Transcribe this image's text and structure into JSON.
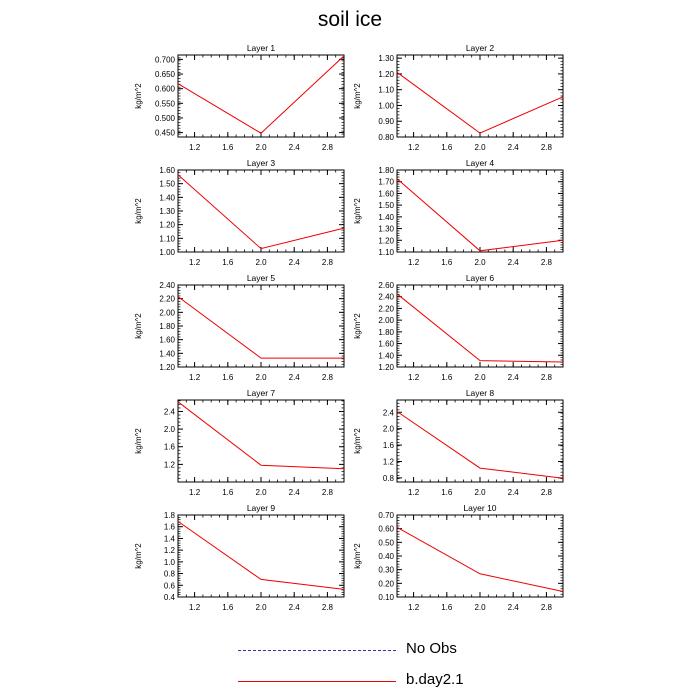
{
  "title": "soil ice",
  "chart_data": [
    {
      "type": "line",
      "title": "Layer 1",
      "ylabel": "kg/m^2",
      "x": [
        1.0,
        2.0,
        3.0
      ],
      "xlim": [
        1.0,
        3.0
      ],
      "ylim": [
        0.435,
        0.715
      ],
      "xticks": [
        "1.2",
        "1.6",
        "2.0",
        "2.4",
        "2.8"
      ],
      "yticks": [
        "0.700",
        "0.650",
        "0.600",
        "0.550",
        "0.500",
        "0.450"
      ],
      "series": [
        {
          "name": "b.day2.1",
          "values": [
            0.617,
            0.448,
            0.712
          ]
        }
      ]
    },
    {
      "type": "line",
      "title": "Layer 2",
      "ylabel": "kg/m^2",
      "x": [
        1.0,
        2.0,
        3.0
      ],
      "xlim": [
        1.0,
        3.0
      ],
      "ylim": [
        0.8,
        1.32
      ],
      "xticks": [
        "1.2",
        "1.6",
        "2.0",
        "2.4",
        "2.8"
      ],
      "yticks": [
        "1.30",
        "1.20",
        "1.10",
        "1.00",
        "0.90",
        "0.80"
      ],
      "series": [
        {
          "name": "b.day2.1",
          "values": [
            1.21,
            0.825,
            1.055
          ]
        }
      ]
    },
    {
      "type": "line",
      "title": "Layer 3",
      "ylabel": "kg/m^2",
      "x": [
        1.0,
        2.0,
        3.0
      ],
      "xlim": [
        1.0,
        3.0
      ],
      "ylim": [
        1.0,
        1.6
      ],
      "xticks": [
        "1.2",
        "1.6",
        "2.0",
        "2.4",
        "2.8"
      ],
      "yticks": [
        "1.60",
        "1.50",
        "1.40",
        "1.30",
        "1.20",
        "1.10",
        "1.00"
      ],
      "series": [
        {
          "name": "b.day2.1",
          "values": [
            1.565,
            1.025,
            1.175
          ]
        }
      ]
    },
    {
      "type": "line",
      "title": "Layer 4",
      "ylabel": "kg/m^2",
      "x": [
        1.0,
        2.0,
        3.0
      ],
      "xlim": [
        1.0,
        3.0
      ],
      "ylim": [
        1.1,
        1.8
      ],
      "xticks": [
        "1.2",
        "1.6",
        "2.0",
        "2.4",
        "2.8"
      ],
      "yticks": [
        "1.80",
        "1.70",
        "1.60",
        "1.50",
        "1.40",
        "1.30",
        "1.20",
        "1.10"
      ],
      "series": [
        {
          "name": "b.day2.1",
          "values": [
            1.725,
            1.11,
            1.2
          ]
        }
      ]
    },
    {
      "type": "line",
      "title": "Layer 5",
      "ylabel": "kg/m^2",
      "x": [
        1.0,
        2.0,
        3.0
      ],
      "xlim": [
        1.0,
        3.0
      ],
      "ylim": [
        1.2,
        2.4
      ],
      "xticks": [
        "1.2",
        "1.6",
        "2.0",
        "2.4",
        "2.8"
      ],
      "yticks": [
        "2.40",
        "2.20",
        "2.00",
        "1.80",
        "1.60",
        "1.40",
        "1.20"
      ],
      "series": [
        {
          "name": "b.day2.1",
          "values": [
            2.23,
            1.33,
            1.33
          ]
        }
      ]
    },
    {
      "type": "line",
      "title": "Layer 6",
      "ylabel": "kg/m^2",
      "x": [
        1.0,
        2.0,
        3.0
      ],
      "xlim": [
        1.0,
        3.0
      ],
      "ylim": [
        1.2,
        2.6
      ],
      "xticks": [
        "1.2",
        "1.6",
        "2.0",
        "2.4",
        "2.8"
      ],
      "yticks": [
        "2.60",
        "2.40",
        "2.20",
        "2.00",
        "1.80",
        "1.60",
        "1.40",
        "1.20"
      ],
      "series": [
        {
          "name": "b.day2.1",
          "values": [
            2.45,
            1.31,
            1.285
          ]
        }
      ]
    },
    {
      "type": "line",
      "title": "Layer 7",
      "ylabel": "kg/m^2",
      "x": [
        1.0,
        2.0,
        3.0
      ],
      "xlim": [
        1.0,
        3.0
      ],
      "ylim": [
        0.8,
        2.66
      ],
      "xticks": [
        "1.2",
        "1.6",
        "2.0",
        "2.4",
        "2.8"
      ],
      "yticks": [
        "2.4",
        "2.0",
        "1.6",
        "1.2"
      ],
      "series": [
        {
          "name": "b.day2.1",
          "values": [
            2.62,
            1.18,
            1.1
          ]
        }
      ]
    },
    {
      "type": "line",
      "title": "Layer 8",
      "ylabel": "kg/m^2",
      "x": [
        1.0,
        2.0,
        3.0
      ],
      "xlim": [
        1.0,
        3.0
      ],
      "ylim": [
        0.7,
        2.7
      ],
      "xticks": [
        "1.2",
        "1.6",
        "2.0",
        "2.4",
        "2.8"
      ],
      "yticks": [
        "2.4",
        "2.0",
        "1.6",
        "1.2",
        "0.8"
      ],
      "series": [
        {
          "name": "b.day2.1",
          "values": [
            2.42,
            1.04,
            0.79
          ]
        }
      ]
    },
    {
      "type": "line",
      "title": "Layer 9",
      "ylabel": "kg/m^2",
      "x": [
        1.0,
        2.0,
        3.0
      ],
      "xlim": [
        1.0,
        3.0
      ],
      "ylim": [
        0.4,
        1.8
      ],
      "xticks": [
        "1.2",
        "1.6",
        "2.0",
        "2.4",
        "2.8"
      ],
      "yticks": [
        "1.8",
        "1.6",
        "1.4",
        "1.2",
        "1.0",
        "0.8",
        "0.6",
        "0.4"
      ],
      "series": [
        {
          "name": "b.day2.1",
          "values": [
            1.69,
            0.7,
            0.53
          ]
        }
      ]
    },
    {
      "type": "line",
      "title": "Layer 10",
      "ylabel": "kg/m^2",
      "x": [
        1.0,
        2.0,
        3.0
      ],
      "xlim": [
        1.0,
        3.0
      ],
      "ylim": [
        0.1,
        0.7
      ],
      "xticks": [
        "1.2",
        "1.6",
        "2.0",
        "2.4",
        "2.8"
      ],
      "yticks": [
        "0.70",
        "0.60",
        "0.50",
        "0.40",
        "0.30",
        "0.20",
        "0.10"
      ],
      "series": [
        {
          "name": "b.day2.1",
          "values": [
            0.61,
            0.27,
            0.14
          ]
        }
      ]
    }
  ],
  "legend": [
    {
      "label": "No Obs",
      "color": "#3333aa",
      "style": "dashed"
    },
    {
      "label": "b.day2.1",
      "color": "#ee0000",
      "style": "solid"
    }
  ]
}
